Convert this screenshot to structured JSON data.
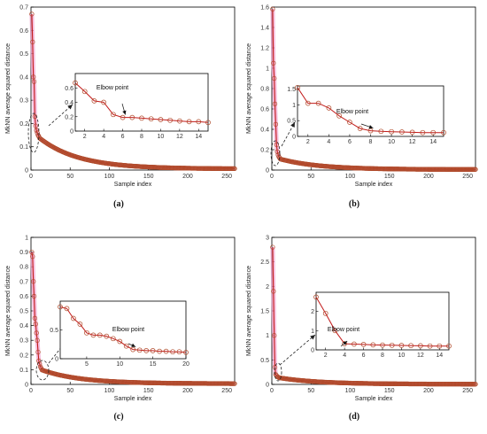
{
  "colors": {
    "line": "#c21a1a",
    "marker": "#b04a2a",
    "shadow": "#f2a3cf",
    "axis": "#000000"
  },
  "chart_data": [
    {
      "type": "line",
      "panel_label": "(a)",
      "xlabel": "Sample index",
      "ylabel": "MkNN average squared distance",
      "xlim": [
        0,
        260
      ],
      "ylim": [
        0,
        0.7
      ],
      "xticks": [
        0,
        50,
        100,
        150,
        200,
        250
      ],
      "yticks": [
        0,
        0.1,
        0.2,
        0.3,
        0.4,
        0.5,
        0.6,
        0.7
      ],
      "head": [
        0.67,
        0.55,
        0.4,
        0.38,
        0.23,
        0.19,
        0.17,
        0.16,
        0.15,
        0.145
      ],
      "tail": {
        "n": 260,
        "start": 0.14,
        "end": 0.005,
        "k": 5
      },
      "inset": {
        "annotation": "Elbow point",
        "elbow_x": 6,
        "xlim": [
          1,
          15
        ],
        "ylim": [
          0,
          0.8
        ],
        "xticks": [
          2,
          4,
          6,
          8,
          10,
          12,
          14
        ],
        "yticks": [
          0,
          0.2,
          0.4,
          0.6
        ],
        "x": [
          1,
          2,
          3,
          4,
          5,
          6,
          7,
          8,
          9,
          10,
          11,
          12,
          13,
          14,
          15
        ],
        "y": [
          0.67,
          0.55,
          0.42,
          0.4,
          0.23,
          0.19,
          0.19,
          0.18,
          0.17,
          0.16,
          0.15,
          0.14,
          0.13,
          0.13,
          0.12
        ]
      }
    },
    {
      "type": "line",
      "panel_label": "(b)",
      "xlabel": "Sample index",
      "ylabel": "MkNN average squared distance",
      "xlim": [
        0,
        260
      ],
      "ylim": [
        0,
        1.6
      ],
      "xticks": [
        0,
        50,
        100,
        150,
        200,
        250
      ],
      "yticks": [
        0,
        0.2,
        0.4,
        0.6,
        0.8,
        1,
        1.2,
        1.4,
        1.6
      ],
      "head": [
        1.58,
        1.05,
        0.9,
        0.65,
        0.45,
        0.25,
        0.18,
        0.15,
        0.13,
        0.12
      ],
      "tail": {
        "n": 260,
        "start": 0.11,
        "end": 0.005,
        "k": 5
      },
      "inset": {
        "annotation": "Elbow point",
        "elbow_x": 8,
        "xlim": [
          1,
          15
        ],
        "ylim": [
          0,
          1.6
        ],
        "xticks": [
          2,
          4,
          6,
          8,
          10,
          12,
          14
        ],
        "yticks": [
          0,
          0.5,
          1,
          1.5
        ],
        "x": [
          1,
          2,
          3,
          4,
          5,
          6,
          7,
          8,
          9,
          10,
          11,
          12,
          13,
          14,
          15
        ],
        "y": [
          1.55,
          1.05,
          1.05,
          0.9,
          0.65,
          0.45,
          0.25,
          0.18,
          0.16,
          0.15,
          0.14,
          0.13,
          0.12,
          0.12,
          0.12
        ]
      }
    },
    {
      "type": "line",
      "panel_label": "(c)",
      "xlabel": "Sample index",
      "ylabel": "MkNN average squared distance",
      "xlim": [
        0,
        260
      ],
      "ylim": [
        0,
        1.0
      ],
      "xticks": [
        0,
        50,
        100,
        150,
        200,
        250
      ],
      "yticks": [
        0,
        0.1,
        0.2,
        0.3,
        0.4,
        0.5,
        0.6,
        0.7,
        0.8,
        0.9,
        1
      ],
      "head": [
        0.9,
        0.87,
        0.7,
        0.6,
        0.45,
        0.41,
        0.35,
        0.3,
        0.22,
        0.16,
        0.14,
        0.12,
        0.11
      ],
      "tail": {
        "n": 260,
        "start": 0.1,
        "end": 0.005,
        "k": 5
      },
      "inset": {
        "annotation": "Elbow point",
        "elbow_x": 12,
        "xlim": [
          1,
          20
        ],
        "ylim": [
          0,
          1.0
        ],
        "xticks": [
          5,
          10,
          15,
          20
        ],
        "yticks": [
          0,
          0.5
        ],
        "x": [
          1,
          2,
          3,
          4,
          5,
          6,
          7,
          8,
          9,
          10,
          11,
          12,
          13,
          14,
          15,
          16,
          17,
          18,
          19,
          20
        ],
        "y": [
          0.9,
          0.87,
          0.7,
          0.6,
          0.45,
          0.41,
          0.41,
          0.39,
          0.35,
          0.3,
          0.22,
          0.16,
          0.15,
          0.14,
          0.14,
          0.13,
          0.13,
          0.12,
          0.12,
          0.11
        ]
      }
    },
    {
      "type": "line",
      "panel_label": "(d)",
      "xlabel": "Sample index",
      "ylabel": "MkNN average squared distance",
      "xlim": [
        0,
        260
      ],
      "ylim": [
        0,
        3
      ],
      "xticks": [
        0,
        50,
        100,
        150,
        200,
        250
      ],
      "yticks": [
        0,
        0.5,
        1,
        1.5,
        2,
        2.5,
        3
      ],
      "head": [
        2.8,
        1.9,
        1.0,
        0.35,
        0.2,
        0.18,
        0.16,
        0.15
      ],
      "tail": {
        "n": 260,
        "start": 0.14,
        "end": 0.005,
        "k": 5
      },
      "inset": {
        "annotation": "Elbow point",
        "elbow_x": 4,
        "xlim": [
          1,
          15
        ],
        "ylim": [
          0,
          3
        ],
        "xticks": [
          2,
          4,
          6,
          8,
          10,
          12,
          14
        ],
        "yticks": [
          0,
          1,
          2
        ],
        "x": [
          1,
          2,
          3,
          4,
          5,
          6,
          7,
          8,
          9,
          10,
          11,
          12,
          13,
          14,
          15
        ],
        "y": [
          2.75,
          1.9,
          1.0,
          0.32,
          0.3,
          0.28,
          0.26,
          0.25,
          0.24,
          0.23,
          0.22,
          0.21,
          0.2,
          0.2,
          0.2
        ]
      }
    }
  ]
}
